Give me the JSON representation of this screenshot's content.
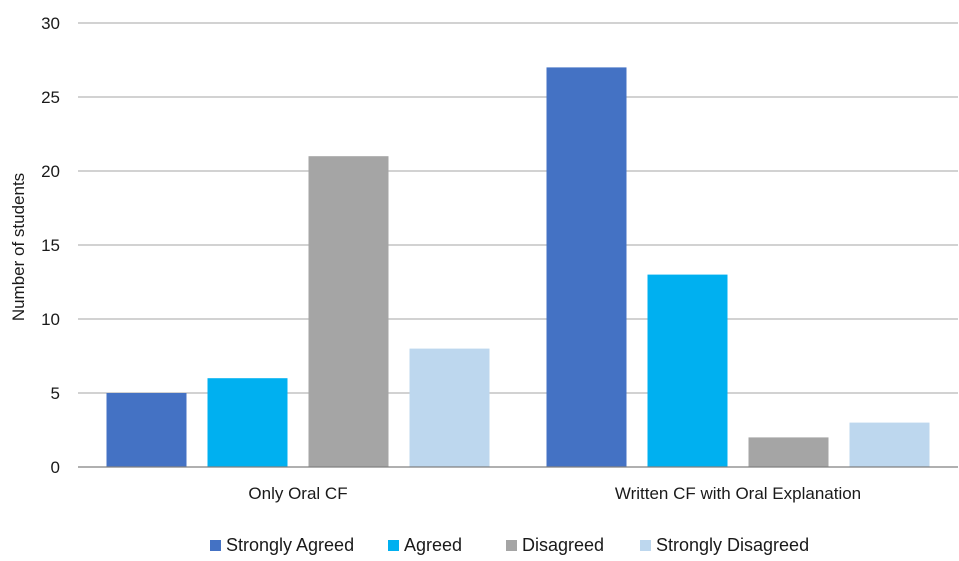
{
  "chart_data": {
    "type": "bar",
    "categories": [
      "Only Oral CF",
      "Written CF with Oral Explanation"
    ],
    "series": [
      {
        "name": "Strongly Agreed",
        "color": "#4472c4",
        "values": [
          5,
          27
        ]
      },
      {
        "name": "Agreed",
        "color": "#00b0f0",
        "values": [
          6,
          13
        ]
      },
      {
        "name": "Disagreed",
        "color": "#a5a5a5",
        "values": [
          21,
          2
        ]
      },
      {
        "name": "Strongly Disagreed",
        "color": "#bdd7ee",
        "values": [
          8,
          3
        ]
      }
    ],
    "ylabel": "Number of students",
    "ylim": [
      0,
      30
    ],
    "yticks": [
      0,
      5,
      10,
      15,
      20,
      25,
      30
    ],
    "grid": true,
    "legend_position": "bottom"
  }
}
